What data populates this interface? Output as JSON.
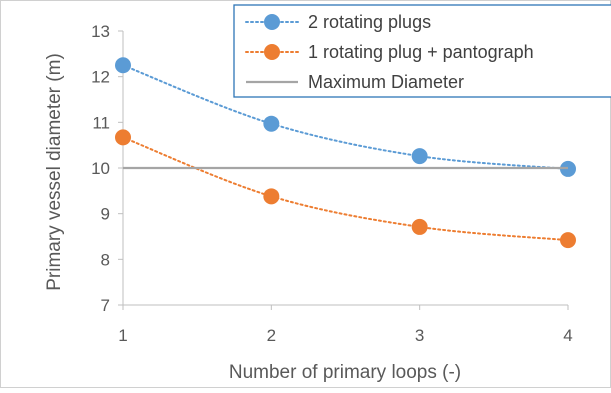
{
  "chart_data": {
    "type": "line",
    "xlabel": "Number of primary loops (-)",
    "ylabel": "Primary vessel diameter (m)",
    "x": [
      1,
      2,
      3,
      4
    ],
    "xlim": [
      1,
      4
    ],
    "ylim": [
      7,
      13
    ],
    "yticks": [
      7,
      8,
      9,
      10,
      11,
      12,
      13
    ],
    "grid": false,
    "legend_position": "top-right",
    "series": [
      {
        "name": "2 rotating plugs",
        "values": [
          12.25,
          10.97,
          10.26,
          9.98
        ],
        "color": "#5B9BD5",
        "line": "dotted",
        "marker": "circle"
      },
      {
        "name": "1 rotating plug + pantograph",
        "values": [
          10.67,
          9.38,
          8.71,
          8.42
        ],
        "color": "#ED7D31",
        "line": "dotted",
        "marker": "circle"
      },
      {
        "name": "Maximum Diameter",
        "values": [
          10,
          10,
          10,
          10
        ],
        "color": "#A5A5A5",
        "line": "solid",
        "marker": "none"
      }
    ]
  }
}
